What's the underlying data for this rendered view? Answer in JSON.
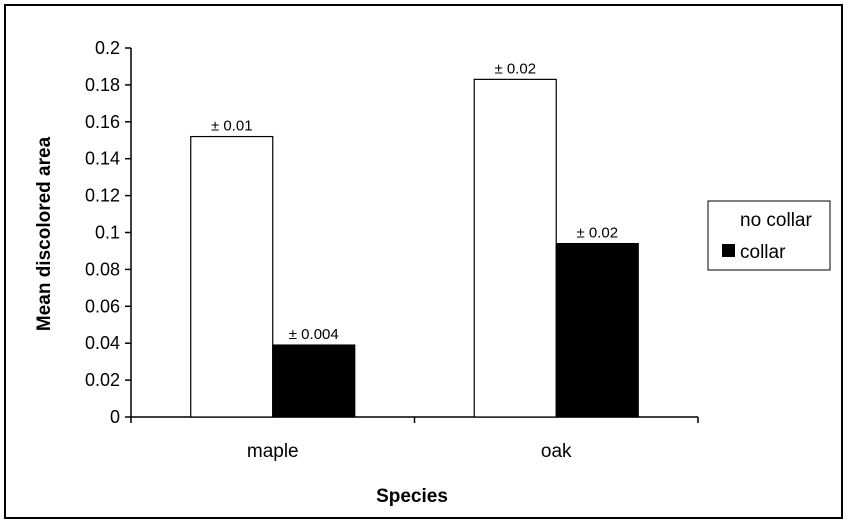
{
  "chart_data": {
    "type": "bar",
    "categories": [
      "maple",
      "oak"
    ],
    "series": [
      {
        "name": "no collar",
        "values": [
          0.152,
          0.183
        ],
        "error_labels": [
          "± 0.01",
          "± 0.02"
        ],
        "fill": "#ffffff"
      },
      {
        "name": "collar",
        "values": [
          0.039,
          0.094
        ],
        "error_labels": [
          "± 0.004",
          "± 0.02"
        ],
        "fill": "#000000"
      }
    ],
    "xlabel": "Species",
    "ylabel": "Mean discolored area",
    "ylim": [
      0,
      0.2
    ],
    "yticks": [
      "0",
      "0.02",
      "0.04",
      "0.06",
      "0.08",
      "0.1",
      "0.12",
      "0.14",
      "0.16",
      "0.18",
      "0.2"
    ],
    "grid": false,
    "legend_position": "right"
  }
}
